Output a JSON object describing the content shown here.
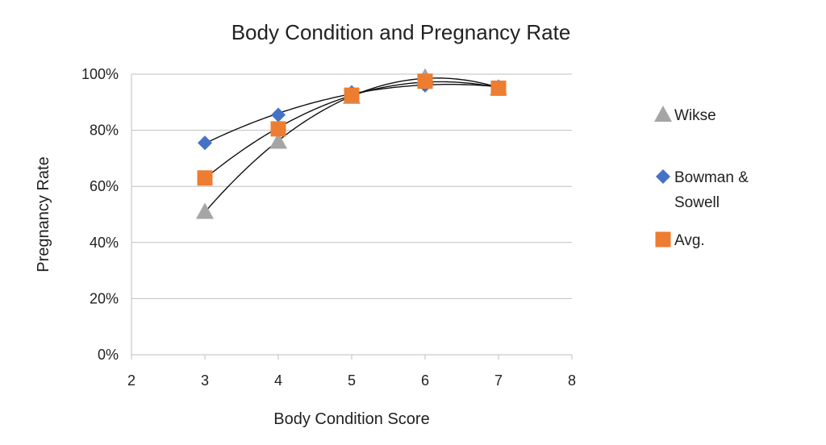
{
  "chart_data": {
    "type": "scatter",
    "title": "Body Condition and Pregnancy Rate",
    "xlabel": "Body Condition Score",
    "ylabel": "Pregnancy Rate",
    "xlim": [
      2,
      8
    ],
    "ylim": [
      0,
      1
    ],
    "xticks": [
      "2",
      "3",
      "4",
      "5",
      "6",
      "7",
      "8"
    ],
    "yticks": [
      "0%",
      "20%",
      "40%",
      "60%",
      "80%",
      "100%"
    ],
    "grid": true,
    "legend_position": "right",
    "trendline": "polynomial order 2 per series",
    "series": [
      {
        "name": "Wikse",
        "marker": "triangle",
        "color": "#a5a5a5",
        "x": [
          3,
          4,
          5,
          6,
          7
        ],
        "y": [
          0.51,
          0.76,
          0.92,
          0.99,
          0.95
        ]
      },
      {
        "name": "Bowman & Sowell",
        "marker": "diamond",
        "color": "#4472c4",
        "x": [
          3,
          4,
          5,
          6,
          7
        ],
        "y": [
          0.755,
          0.855,
          0.935,
          0.96,
          0.955
        ]
      },
      {
        "name": "Avg.",
        "marker": "square",
        "color": "#ed7d31",
        "x": [
          3,
          4,
          5,
          6,
          7
        ],
        "y": [
          0.63,
          0.805,
          0.925,
          0.975,
          0.95
        ]
      }
    ],
    "legend": [
      {
        "lines": [
          "Wikse"
        ]
      },
      {
        "lines": [
          "Bowman &",
          "Sowell"
        ]
      },
      {
        "lines": [
          "Avg."
        ]
      }
    ]
  }
}
